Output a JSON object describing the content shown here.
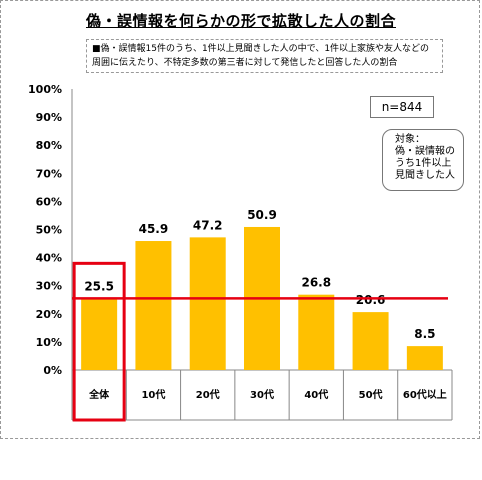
{
  "chart_data": {
    "type": "bar",
    "title": "偽・誤情報を何らかの形で拡散した人の割合",
    "note": "■偽・誤情報15件のうち、1件以上見聞きした人の中で、1件以上家族や友人などの周囲に伝えたり、不特定多数の第三者に対して発信したと回答した人の割合",
    "categories": [
      "全体",
      "10代",
      "20代",
      "30代",
      "40代",
      "50代",
      "60代以上"
    ],
    "values": [
      25.5,
      45.9,
      47.2,
      50.9,
      26.8,
      20.6,
      8.5
    ],
    "value_labels": [
      "25.5",
      "45.9",
      "47.2",
      "50.9",
      "26.8",
      "20.6",
      "8.5"
    ],
    "ylim": [
      0,
      100
    ],
    "yticks": [
      "0%",
      "10%",
      "20%",
      "30%",
      "40%",
      "50%",
      "60%",
      "70%",
      "80%",
      "90%",
      "100%"
    ],
    "reference_line": 25.5,
    "highlighted_category": "全体",
    "sample_size": "n=844",
    "target_note": [
      "対象：",
      "偽・誤情報の",
      "うち1件以上",
      "見聞きした人"
    ],
    "colors": {
      "bar": "#FFC000",
      "highlight": "#E60012",
      "reference_line": "#E60012"
    },
    "grid": false
  }
}
